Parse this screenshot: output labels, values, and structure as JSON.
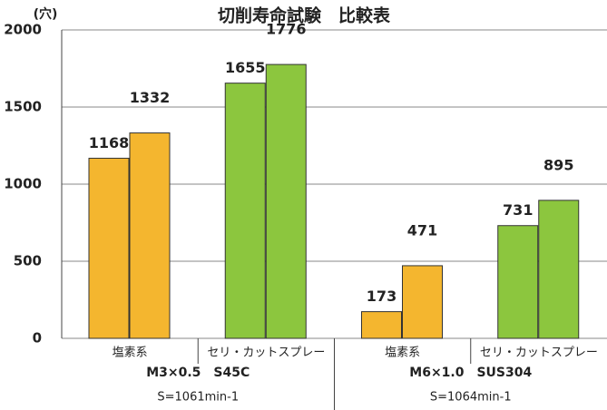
{
  "chart_data": {
    "type": "grouped_bar",
    "title": "切削寿命試験　比較表",
    "y_unit": "(穴)",
    "categories": [
      "塩素系",
      "セリ・カットスプレー",
      "塩素系",
      "セリ・カットスプレー"
    ],
    "values": [
      [
        1168,
        1332
      ],
      [
        1655,
        1776
      ],
      [
        173,
        471
      ],
      [
        731,
        895
      ]
    ],
    "colors": [
      "#f4b62f",
      "#8cc63e",
      "#f4b62f",
      "#8cc63e"
    ],
    "groups": [
      {
        "name": "M3×0.5　S45C",
        "speed": "S=1061min-1"
      },
      {
        "name": "M6×1.0　SUS304",
        "speed": "S=1064min-1"
      }
    ],
    "ylim": [
      0,
      2000
    ],
    "yticks": [
      0,
      500,
      1000,
      1500,
      2000
    ],
    "grid": true
  }
}
